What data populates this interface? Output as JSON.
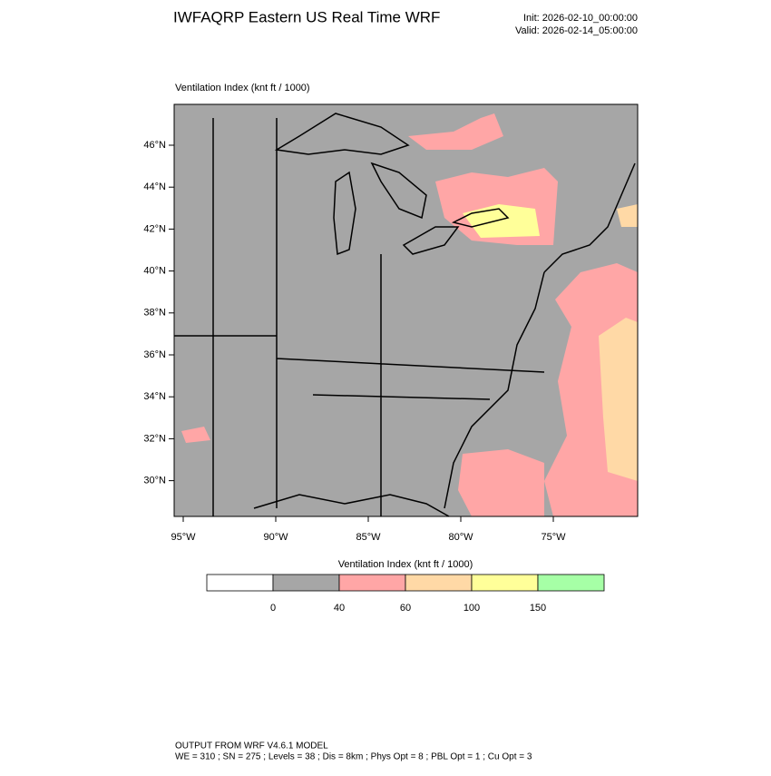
{
  "header": {
    "title": "IWFAQRP Eastern US Real Time WRF",
    "init": "Init: 2026-02-10_00:00:00",
    "valid": "Valid: 2026-02-14_05:00:00"
  },
  "map": {
    "subtitle": "Ventilation Index   (knt ft / 1000)",
    "lat_ticks": [
      {
        "value": 46,
        "label": "46°N"
      },
      {
        "value": 44,
        "label": "44°N"
      },
      {
        "value": 42,
        "label": "42°N"
      },
      {
        "value": 40,
        "label": "40°N"
      },
      {
        "value": 38,
        "label": "38°N"
      },
      {
        "value": 36,
        "label": "36°N"
      },
      {
        "value": 34,
        "label": "34°N"
      },
      {
        "value": 32,
        "label": "32°N"
      },
      {
        "value": 30,
        "label": "30°N"
      }
    ],
    "lon_ticks": [
      {
        "value": -95,
        "label": "95°W"
      },
      {
        "value": -90,
        "label": "90°W"
      },
      {
        "value": -85,
        "label": "85°W"
      },
      {
        "value": -80,
        "label": "80°W"
      },
      {
        "value": -75,
        "label": "75°W"
      }
    ]
  },
  "colorbar": {
    "title": "Ventilation Index  (knt ft / 1000)",
    "colors": [
      "#ffffff",
      "#a6a6a6",
      "#ffa6a6",
      "#ffd9a6",
      "#ffff99",
      "#a6ffa6"
    ],
    "labels": [
      0,
      40,
      60,
      100,
      150
    ]
  },
  "footer": {
    "line1": "OUTPUT FROM WRF V4.6.1 MODEL",
    "line2": "WE = 310 ; SN = 275 ; Levels = 38 ; Dis = 8km ; Phys Opt = 8 ; PBL Opt = 1 ; Cu Opt = 3"
  }
}
